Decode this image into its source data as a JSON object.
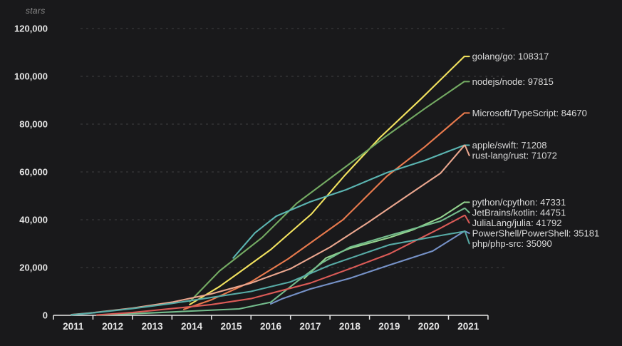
{
  "colors": {
    "background": "#19191b",
    "axis": "#e8e8e8",
    "grid": "#3f3f41",
    "axis_title": "#8f8f8f",
    "tick_text": "#e4e4e4",
    "series_label_text": "#d9d9d9"
  },
  "chart_data": {
    "type": "line",
    "title": "",
    "ylabel": "stars",
    "xlabel": "",
    "xlim": [
      2011,
      2022
    ],
    "ylim": [
      0,
      120000
    ],
    "grid": "horizontal-dashed",
    "legend_position": "right-edge-direct-labels",
    "y_tick_values": [
      0,
      20000,
      40000,
      60000,
      80000,
      100000,
      120000
    ],
    "y_tick_labels": [
      "0",
      "20,000",
      "40,000",
      "60,000",
      "80,000",
      "100,000",
      "120,000"
    ],
    "x_tick_labels": [
      "2011",
      "2012",
      "2013",
      "2014",
      "2015",
      "2016",
      "2017",
      "2018",
      "2019",
      "2020",
      "2021"
    ],
    "series": [
      {
        "name": "golang/go",
        "final_value": 108317,
        "label": "golang/go: 108317",
        "color": "#f3e35f",
        "points": [
          [
            2014.45,
            4500
          ],
          [
            2015.2,
            12000
          ],
          [
            2015.7,
            17900
          ],
          [
            2016.5,
            27500
          ],
          [
            2017.53,
            42400
          ],
          [
            2018.37,
            58500
          ],
          [
            2019.26,
            74300
          ],
          [
            2020.3,
            90500
          ],
          [
            2021.4,
            108317
          ]
        ]
      },
      {
        "name": "nodejs/node",
        "final_value": 97815,
        "label": "nodejs/node: 97815",
        "color": "#74ab63",
        "points": [
          [
            2014.45,
            5700
          ],
          [
            2015.2,
            18500
          ],
          [
            2016.28,
            32500
          ],
          [
            2017.16,
            46900
          ],
          [
            2018.1,
            58500
          ],
          [
            2018.78,
            66900
          ],
          [
            2019.44,
            75200
          ],
          [
            2020.4,
            86500
          ],
          [
            2021.4,
            97815
          ]
        ]
      },
      {
        "name": "Microsoft/TypeScript",
        "final_value": 84670,
        "label": "Microsoft/TypeScript: 84670",
        "color": "#e97a4d",
        "points": [
          [
            2014.3,
            2500
          ],
          [
            2015,
            6500
          ],
          [
            2016,
            14000
          ],
          [
            2016.94,
            23600
          ],
          [
            2018.33,
            40000
          ],
          [
            2019.44,
            58200
          ],
          [
            2020.4,
            70500
          ],
          [
            2021.4,
            84670
          ]
        ]
      },
      {
        "name": "apple/swift",
        "final_value": 71208,
        "label": "apple/swift: 71208",
        "color": "#5bb5b2",
        "points": [
          [
            2015.55,
            24000
          ],
          [
            2016.1,
            34500
          ],
          [
            2016.64,
            41500
          ],
          [
            2017.5,
            47500
          ],
          [
            2018.4,
            52500
          ],
          [
            2019.44,
            59700
          ],
          [
            2020.4,
            64800
          ],
          [
            2021.4,
            71208
          ]
        ]
      },
      {
        "name": "rust-lang/rust",
        "final_value": 71072,
        "label": "rust-lang/rust: 71072",
        "color": "#eca78f",
        "points": [
          [
            2011.45,
            300
          ],
          [
            2012,
            1100
          ],
          [
            2013,
            3000
          ],
          [
            2014,
            5500
          ],
          [
            2015,
            9000
          ],
          [
            2016,
            13500
          ],
          [
            2017,
            19500
          ],
          [
            2018,
            28500
          ],
          [
            2018.96,
            38800
          ],
          [
            2020,
            50500
          ],
          [
            2020.8,
            59500
          ],
          [
            2021.4,
            71072
          ]
        ]
      },
      {
        "name": "python/cpython",
        "final_value": 47331,
        "label": "python/cpython: 47331",
        "color": "#93d38e",
        "points": [
          [
            2017.35,
            15500
          ],
          [
            2017.9,
            24000
          ],
          [
            2018.5,
            28000
          ],
          [
            2019.5,
            32500
          ],
          [
            2020.1,
            35800
          ],
          [
            2020.8,
            40900
          ],
          [
            2021.4,
            47331
          ]
        ]
      },
      {
        "name": "JetBrains/kotlin",
        "final_value": 44751,
        "label": "JetBrains/kotlin: 44751",
        "color": "#74bd8d",
        "points": [
          [
            2012.1,
            100
          ],
          [
            2013.5,
            1000
          ],
          [
            2014.5,
            1800
          ],
          [
            2015.7,
            2700
          ],
          [
            2016.5,
            5500
          ],
          [
            2017.2,
            14600
          ],
          [
            2017.8,
            22000
          ],
          [
            2018.5,
            28500
          ],
          [
            2019.5,
            33400
          ],
          [
            2020.8,
            39400
          ],
          [
            2021.4,
            44751
          ]
        ]
      },
      {
        "name": "JuliaLang/julia",
        "final_value": 41792,
        "label": "JuliaLang/julia: 41792",
        "color": "#dc5b57",
        "points": [
          [
            2012.1,
            150
          ],
          [
            2013,
            1200
          ],
          [
            2014,
            2800
          ],
          [
            2015,
            4500
          ],
          [
            2016,
            7000
          ],
          [
            2016.6,
            9600
          ],
          [
            2017.5,
            13500
          ],
          [
            2018.5,
            19500
          ],
          [
            2019.5,
            25700
          ],
          [
            2020.8,
            36500
          ],
          [
            2021.4,
            41792
          ]
        ]
      },
      {
        "name": "PowerShell/PowerShell",
        "final_value": 35181,
        "label": "PowerShell/PowerShell: 35181",
        "color": "#7692c8",
        "points": [
          [
            2016.5,
            4800
          ],
          [
            2016.8,
            7000
          ],
          [
            2017.5,
            11000
          ],
          [
            2018.5,
            15500
          ],
          [
            2019.5,
            21000
          ],
          [
            2020.6,
            26900
          ],
          [
            2021.4,
            35181
          ]
        ]
      },
      {
        "name": "php/php-src",
        "final_value": 35090,
        "label": "php/php-src: 35090",
        "color": "#57aba6",
        "points": [
          [
            2011.45,
            200
          ],
          [
            2012,
            1000
          ],
          [
            2013,
            2800
          ],
          [
            2014,
            5000
          ],
          [
            2015,
            7500
          ],
          [
            2016,
            10000
          ],
          [
            2017,
            14000
          ],
          [
            2018,
            21000
          ],
          [
            2019.5,
            29500
          ],
          [
            2020.8,
            33400
          ],
          [
            2021.4,
            35090
          ]
        ]
      }
    ]
  }
}
